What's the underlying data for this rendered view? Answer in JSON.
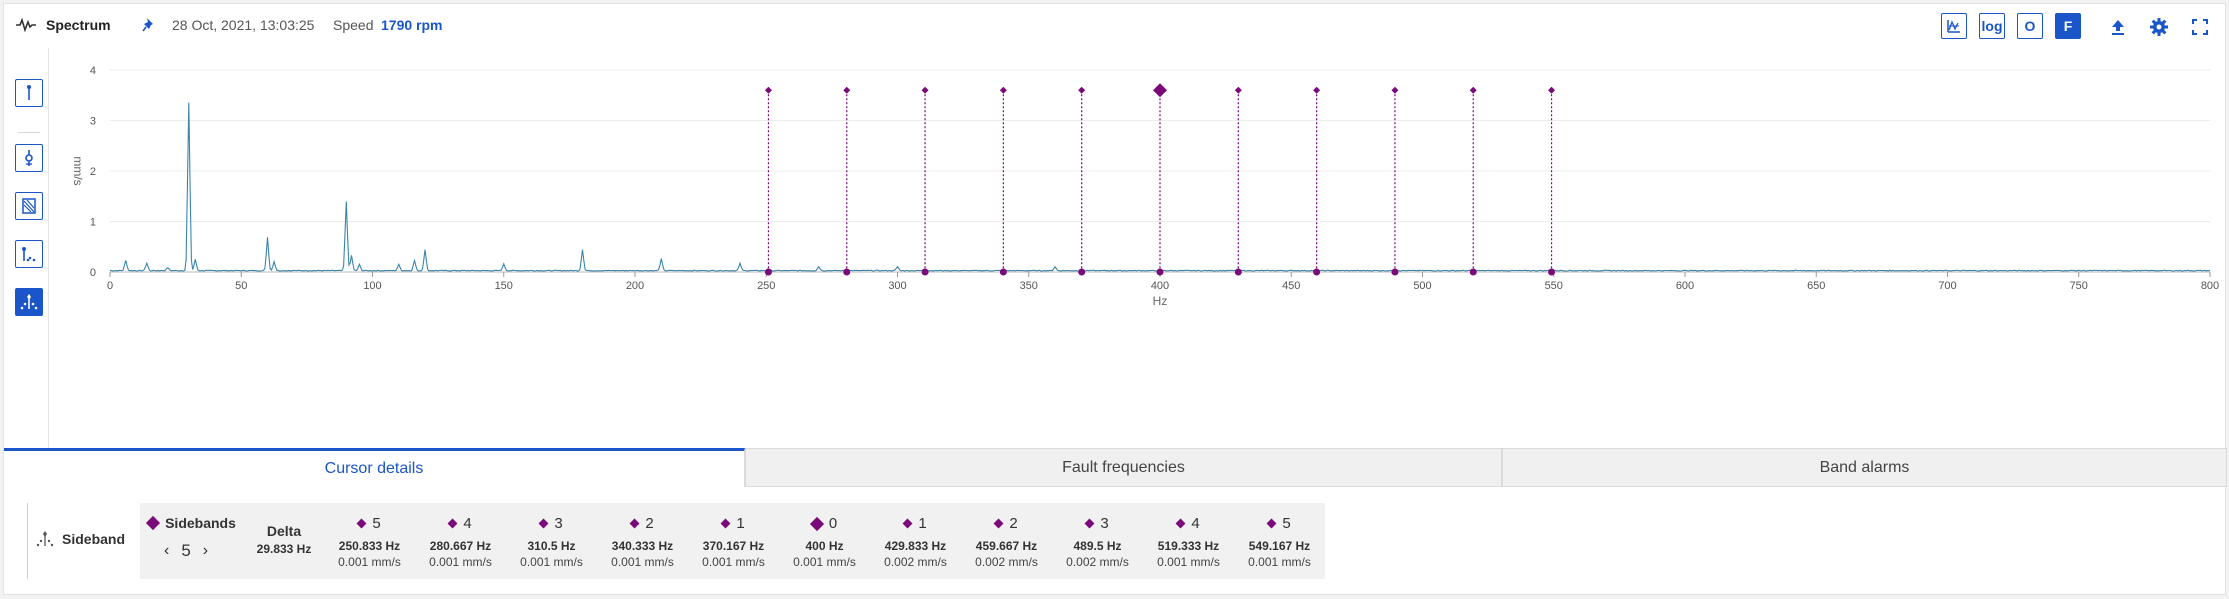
{
  "header": {
    "title": "Spectrum",
    "icon": "waveform-icon",
    "timestamp": "28 Oct, 2021, 13:03:25",
    "speed_label": "Speed",
    "speed_value": "1790 rpm",
    "toolbar": {
      "log_label": "log",
      "o_label": "O",
      "f_label": "F"
    }
  },
  "chart_data": {
    "type": "line",
    "xlabel": "Hz",
    "ylabel": "mm/s",
    "xlim": [
      0,
      800
    ],
    "ylim": [
      0,
      4
    ],
    "x_ticks": [
      0,
      50,
      100,
      150,
      200,
      250,
      300,
      350,
      400,
      450,
      500,
      550,
      600,
      650,
      700,
      750,
      800
    ],
    "y_ticks": [
      0,
      1,
      2,
      3,
      4
    ],
    "grid": "horizontal",
    "line_color": "#3a86a8",
    "marker_color": "#7a0a7a",
    "baseline": 0.02,
    "peaks": [
      {
        "x": 6,
        "y": 0.2
      },
      {
        "x": 14,
        "y": 0.15
      },
      {
        "x": 22,
        "y": 0.06
      },
      {
        "x": 30,
        "y": 3.32
      },
      {
        "x": 32.5,
        "y": 0.22
      },
      {
        "x": 60,
        "y": 0.66
      },
      {
        "x": 62.5,
        "y": 0.18
      },
      {
        "x": 90,
        "y": 1.37
      },
      {
        "x": 92,
        "y": 0.3
      },
      {
        "x": 95,
        "y": 0.12
      },
      {
        "x": 110,
        "y": 0.12
      },
      {
        "x": 116,
        "y": 0.2
      },
      {
        "x": 120,
        "y": 0.42
      },
      {
        "x": 150,
        "y": 0.13
      },
      {
        "x": 180,
        "y": 0.42
      },
      {
        "x": 210,
        "y": 0.23
      },
      {
        "x": 240,
        "y": 0.14
      },
      {
        "x": 270,
        "y": 0.08
      },
      {
        "x": 300,
        "y": 0.08
      },
      {
        "x": 360,
        "y": 0.08
      }
    ],
    "cursor": {
      "type": "sideband",
      "center_hz": 400,
      "delta_hz": 29.833,
      "count": 5,
      "marker_level": 3.6
    },
    "sideband_markers_hz": [
      250.833,
      280.667,
      310.5,
      340.333,
      370.167,
      400,
      429.833,
      459.667,
      489.5,
      519.333,
      549.167
    ]
  },
  "left_tools": [
    {
      "name": "single-cursor-icon",
      "active": false
    },
    {
      "name": "harmonic-cursor-icon",
      "active": false
    },
    {
      "name": "band-cursor-icon",
      "active": false
    },
    {
      "name": "peak-cursor-icon",
      "active": false
    },
    {
      "name": "sideband-cursor-icon",
      "active": true
    }
  ],
  "tabs": [
    {
      "label": "Cursor details",
      "active": true
    },
    {
      "label": "Fault frequencies",
      "active": false
    },
    {
      "label": "Band alarms",
      "active": false
    }
  ],
  "details": {
    "mode_label": "Sideband",
    "sidebands_label": "Sidebands",
    "sidebands_count": "5",
    "delta_label": "Delta",
    "delta_value": "29.833 Hz",
    "columns": [
      {
        "index": "5",
        "freq": "250.833 Hz",
        "amp": "0.001 mm/s",
        "center": false
      },
      {
        "index": "4",
        "freq": "280.667 Hz",
        "amp": "0.001 mm/s",
        "center": false
      },
      {
        "index": "3",
        "freq": "310.5 Hz",
        "amp": "0.001 mm/s",
        "center": false
      },
      {
        "index": "2",
        "freq": "340.333 Hz",
        "amp": "0.001 mm/s",
        "center": false
      },
      {
        "index": "1",
        "freq": "370.167 Hz",
        "amp": "0.001 mm/s",
        "center": false
      },
      {
        "index": "0",
        "freq": "400 Hz",
        "amp": "0.001 mm/s",
        "center": true
      },
      {
        "index": "1",
        "freq": "429.833 Hz",
        "amp": "0.002 mm/s",
        "center": false
      },
      {
        "index": "2",
        "freq": "459.667 Hz",
        "amp": "0.002 mm/s",
        "center": false
      },
      {
        "index": "3",
        "freq": "489.5 Hz",
        "amp": "0.002 mm/s",
        "center": false
      },
      {
        "index": "4",
        "freq": "519.333 Hz",
        "amp": "0.001 mm/s",
        "center": false
      },
      {
        "index": "5",
        "freq": "549.167 Hz",
        "amp": "0.001 mm/s",
        "center": false
      }
    ]
  }
}
